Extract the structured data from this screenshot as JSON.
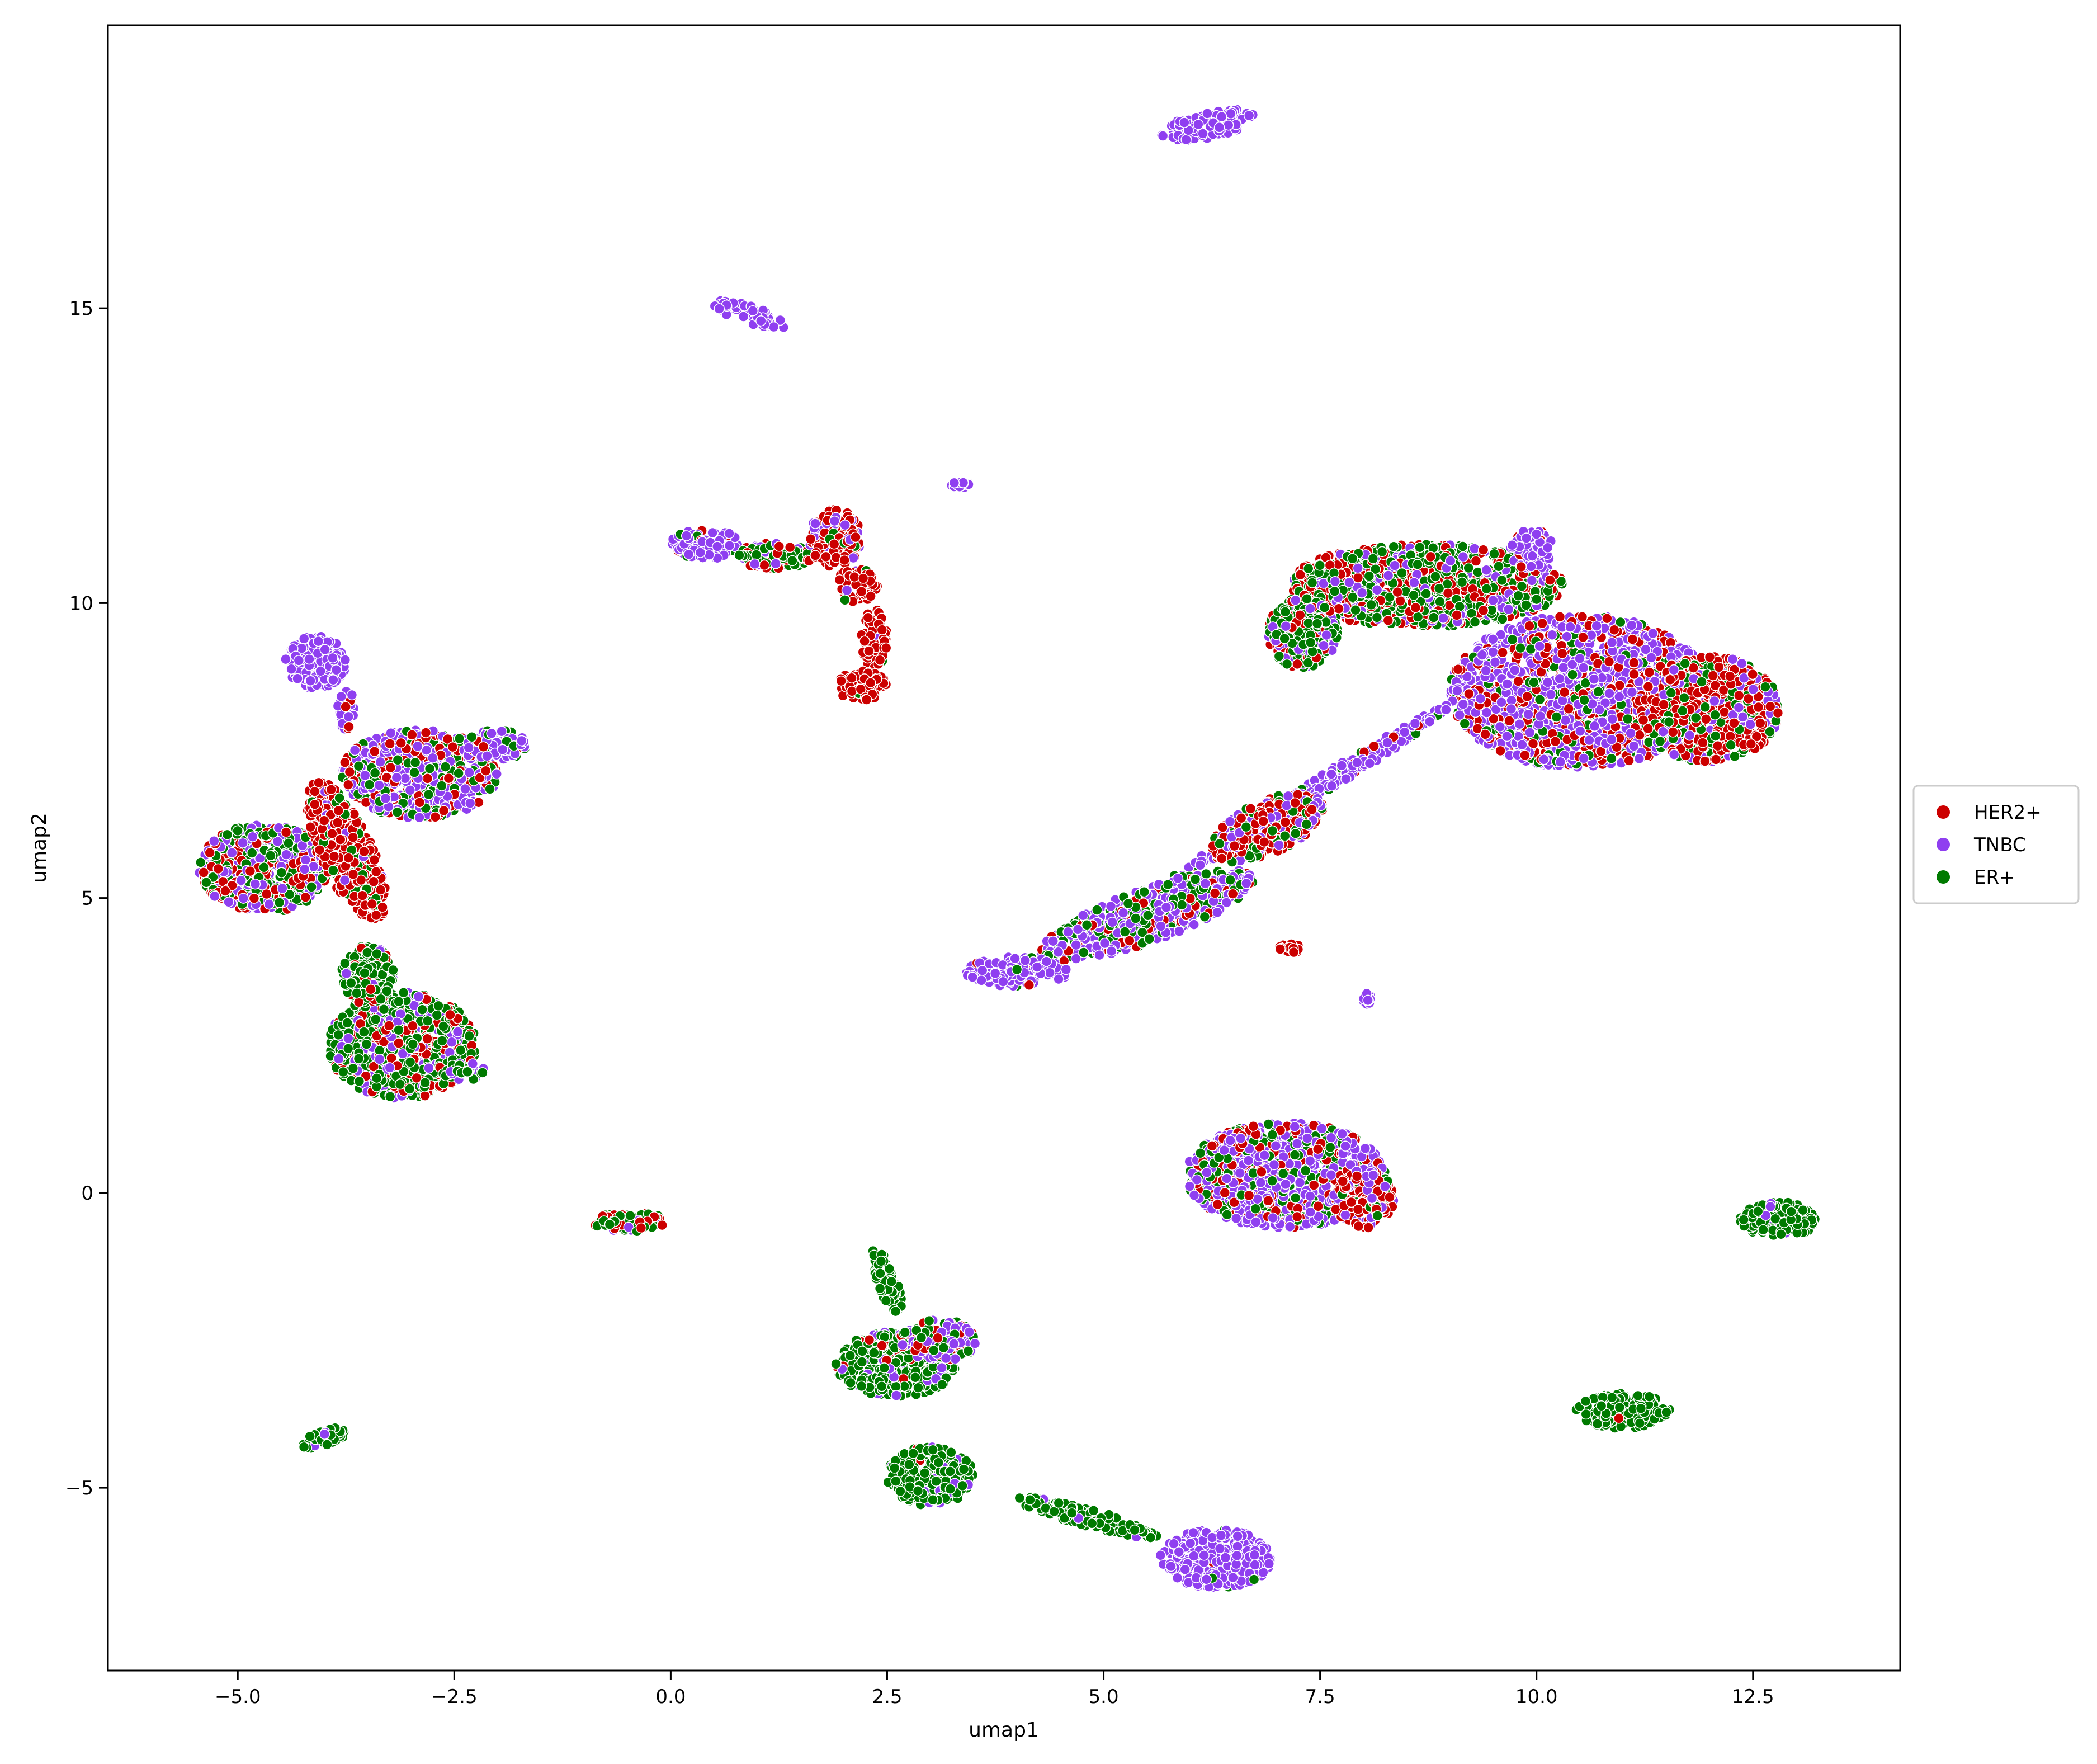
{
  "chart_data": {
    "type": "scatter",
    "title": "",
    "xlabel": "umap1",
    "ylabel": "umap2",
    "xlim": [
      -6.5,
      14.2
    ],
    "ylim": [
      -8.1,
      19.8
    ],
    "grid": false,
    "legend": {
      "placement": "right, outside plot",
      "entries": [
        "HER2+",
        "TNBC",
        "ER+"
      ]
    },
    "x_ticks": [
      {
        "value": -5.0,
        "label": "−5.0"
      },
      {
        "value": -2.5,
        "label": "−2.5"
      },
      {
        "value": 0.0,
        "label": "0.0"
      },
      {
        "value": 2.5,
        "label": "2.5"
      },
      {
        "value": 5.0,
        "label": "5.0"
      },
      {
        "value": 7.5,
        "label": "7.5"
      },
      {
        "value": 10.0,
        "label": "10.0"
      },
      {
        "value": 12.5,
        "label": "12.5"
      }
    ],
    "y_ticks": [
      {
        "value": -5,
        "label": "−5"
      },
      {
        "value": 0,
        "label": "0"
      },
      {
        "value": 5,
        "label": "5"
      },
      {
        "value": 10,
        "label": "10"
      },
      {
        "value": 15,
        "label": "15"
      }
    ],
    "series": [
      {
        "name": "HER2+",
        "color": "#cc0000"
      },
      {
        "name": "TNBC",
        "color": "#8f3ff0"
      },
      {
        "name": "ER+",
        "color": "#007a00"
      }
    ],
    "clusters": [
      {
        "cx": 6.2,
        "cy": 18.1,
        "rx": 0.55,
        "ry": 0.22,
        "rot": 12,
        "mix": [
          0,
          1,
          0
        ]
      },
      {
        "cx": 0.9,
        "cy": 14.9,
        "rx": 0.45,
        "ry": 0.15,
        "rot": -18,
        "mix": [
          0,
          0.97,
          0.03
        ]
      },
      {
        "cx": 3.35,
        "cy": 12.0,
        "rx": 0.12,
        "ry": 0.05,
        "rot": 0,
        "mix": [
          0,
          1,
          0
        ]
      },
      {
        "cx": 0.4,
        "cy": 11.0,
        "rx": 0.4,
        "ry": 0.25,
        "rot": 0,
        "mix": [
          0.05,
          0.9,
          0.05
        ]
      },
      {
        "cx": 1.2,
        "cy": 10.8,
        "rx": 0.45,
        "ry": 0.22,
        "rot": 0,
        "mix": [
          0.25,
          0.2,
          0.55
        ]
      },
      {
        "cx": 1.9,
        "cy": 11.1,
        "rx": 0.3,
        "ry": 0.5,
        "rot": 0,
        "mix": [
          0.7,
          0.2,
          0.1
        ]
      },
      {
        "cx": 2.15,
        "cy": 10.3,
        "rx": 0.25,
        "ry": 0.3,
        "rot": 0,
        "mix": [
          0.95,
          0.03,
          0.02
        ]
      },
      {
        "cx": 2.35,
        "cy": 9.4,
        "rx": 0.15,
        "ry": 0.5,
        "rot": 0,
        "mix": [
          0.95,
          0.03,
          0.02
        ]
      },
      {
        "cx": 2.2,
        "cy": 8.6,
        "rx": 0.3,
        "ry": 0.25,
        "rot": 0,
        "mix": [
          0.92,
          0.03,
          0.05
        ]
      },
      {
        "cx": -4.1,
        "cy": 9.0,
        "rx": 0.35,
        "ry": 0.45,
        "rot": 0,
        "mix": [
          0,
          1,
          0
        ]
      },
      {
        "cx": -3.75,
        "cy": 8.2,
        "rx": 0.1,
        "ry": 0.35,
        "rot": 0,
        "mix": [
          0.1,
          0.85,
          0.05
        ]
      },
      {
        "cx": -2.9,
        "cy": 7.1,
        "rx": 0.9,
        "ry": 0.75,
        "rot": 0,
        "mix": [
          0.28,
          0.5,
          0.22
        ]
      },
      {
        "cx": -2.0,
        "cy": 7.6,
        "rx": 0.35,
        "ry": 0.25,
        "rot": 0,
        "mix": [
          0.05,
          0.8,
          0.15
        ]
      },
      {
        "cx": -4.7,
        "cy": 5.5,
        "rx": 0.75,
        "ry": 0.75,
        "rot": 0,
        "mix": [
          0.25,
          0.3,
          0.45
        ]
      },
      {
        "cx": -3.75,
        "cy": 5.8,
        "rx": 0.3,
        "ry": 1.3,
        "rot": 25,
        "mix": [
          0.8,
          0.05,
          0.15
        ]
      },
      {
        "cx": -3.1,
        "cy": 2.5,
        "rx": 0.85,
        "ry": 0.9,
        "rot": 0,
        "mix": [
          0.25,
          0.2,
          0.55
        ]
      },
      {
        "cx": -2.4,
        "cy": 2.1,
        "rx": 0.25,
        "ry": 0.2,
        "rot": 0,
        "mix": [
          0.05,
          0.4,
          0.55
        ]
      },
      {
        "cx": -3.5,
        "cy": 3.7,
        "rx": 0.3,
        "ry": 0.5,
        "rot": 0,
        "mix": [
          0.1,
          0.05,
          0.85
        ]
      },
      {
        "cx": -4.0,
        "cy": -4.15,
        "rx": 0.28,
        "ry": 0.15,
        "rot": 20,
        "mix": [
          0,
          0.02,
          0.98
        ]
      },
      {
        "cx": -0.45,
        "cy": -0.5,
        "rx": 0.45,
        "ry": 0.17,
        "rot": 0,
        "mix": [
          0.35,
          0.1,
          0.55
        ]
      },
      {
        "cx": 8.7,
        "cy": 10.3,
        "rx": 1.6,
        "ry": 0.7,
        "rot": 0,
        "mix": [
          0.3,
          0.15,
          0.55
        ]
      },
      {
        "cx": 7.3,
        "cy": 9.5,
        "rx": 0.4,
        "ry": 0.6,
        "rot": 0,
        "mix": [
          0.2,
          0.2,
          0.6
        ]
      },
      {
        "cx": 10.5,
        "cy": 8.5,
        "rx": 1.5,
        "ry": 1.3,
        "rot": 0,
        "mix": [
          0.3,
          0.58,
          0.12
        ]
      },
      {
        "cx": 12.0,
        "cy": 8.2,
        "rx": 0.8,
        "ry": 0.9,
        "rot": 0,
        "mix": [
          0.6,
          0.15,
          0.25
        ]
      },
      {
        "cx": 9.95,
        "cy": 10.9,
        "rx": 0.25,
        "ry": 0.35,
        "rot": 0,
        "mix": [
          0.1,
          0.9,
          0
        ]
      },
      {
        "cx": 7.4,
        "cy": 6.8,
        "rx": 1.9,
        "ry": 0.15,
        "rot": 32,
        "mix": [
          0.05,
          0.88,
          0.07
        ]
      },
      {
        "cx": 6.9,
        "cy": 6.2,
        "rx": 0.7,
        "ry": 0.45,
        "rot": 25,
        "mix": [
          0.45,
          0.35,
          0.2
        ]
      },
      {
        "cx": 5.5,
        "cy": 4.7,
        "rx": 1.3,
        "ry": 0.45,
        "rot": 20,
        "mix": [
          0.15,
          0.55,
          0.3
        ]
      },
      {
        "cx": 4.0,
        "cy": 3.75,
        "rx": 0.6,
        "ry": 0.25,
        "rot": 0,
        "mix": [
          0.02,
          0.93,
          0.05
        ]
      },
      {
        "cx": 7.15,
        "cy": 4.15,
        "rx": 0.12,
        "ry": 0.08,
        "rot": 0,
        "mix": [
          1,
          0,
          0
        ]
      },
      {
        "cx": 8.05,
        "cy": 3.3,
        "rx": 0.06,
        "ry": 0.1,
        "rot": 0,
        "mix": [
          0,
          1,
          0
        ]
      },
      {
        "cx": 7.1,
        "cy": 0.3,
        "rx": 1.15,
        "ry": 0.9,
        "rot": 0,
        "mix": [
          0.2,
          0.55,
          0.25
        ]
      },
      {
        "cx": 8.0,
        "cy": -0.1,
        "rx": 0.35,
        "ry": 0.5,
        "rot": 0,
        "mix": [
          0.6,
          0.3,
          0.1
        ]
      },
      {
        "cx": 12.8,
        "cy": -0.45,
        "rx": 0.45,
        "ry": 0.3,
        "rot": 0,
        "mix": [
          0,
          0.05,
          0.95
        ]
      },
      {
        "cx": 2.6,
        "cy": -2.9,
        "rx": 0.7,
        "ry": 0.55,
        "rot": 0,
        "mix": [
          0.08,
          0.12,
          0.8
        ]
      },
      {
        "cx": 3.1,
        "cy": -2.5,
        "rx": 0.45,
        "ry": 0.35,
        "rot": 0,
        "mix": [
          0.3,
          0.4,
          0.3
        ]
      },
      {
        "cx": 2.5,
        "cy": -1.5,
        "rx": 0.12,
        "ry": 0.6,
        "rot": 20,
        "mix": [
          0,
          0.05,
          0.95
        ]
      },
      {
        "cx": 3.0,
        "cy": -4.8,
        "rx": 0.5,
        "ry": 0.5,
        "rot": 0,
        "mix": [
          0.03,
          0.07,
          0.9
        ]
      },
      {
        "cx": 4.8,
        "cy": -5.5,
        "rx": 0.85,
        "ry": 0.15,
        "rot": -15,
        "mix": [
          0,
          0.05,
          0.95
        ]
      },
      {
        "cx": 6.3,
        "cy": -6.2,
        "rx": 0.65,
        "ry": 0.5,
        "rot": 0,
        "mix": [
          0.02,
          0.95,
          0.03
        ]
      },
      {
        "cx": 11.0,
        "cy": -3.7,
        "rx": 0.55,
        "ry": 0.3,
        "rot": 0,
        "mix": [
          0.02,
          0,
          0.98
        ]
      }
    ]
  }
}
